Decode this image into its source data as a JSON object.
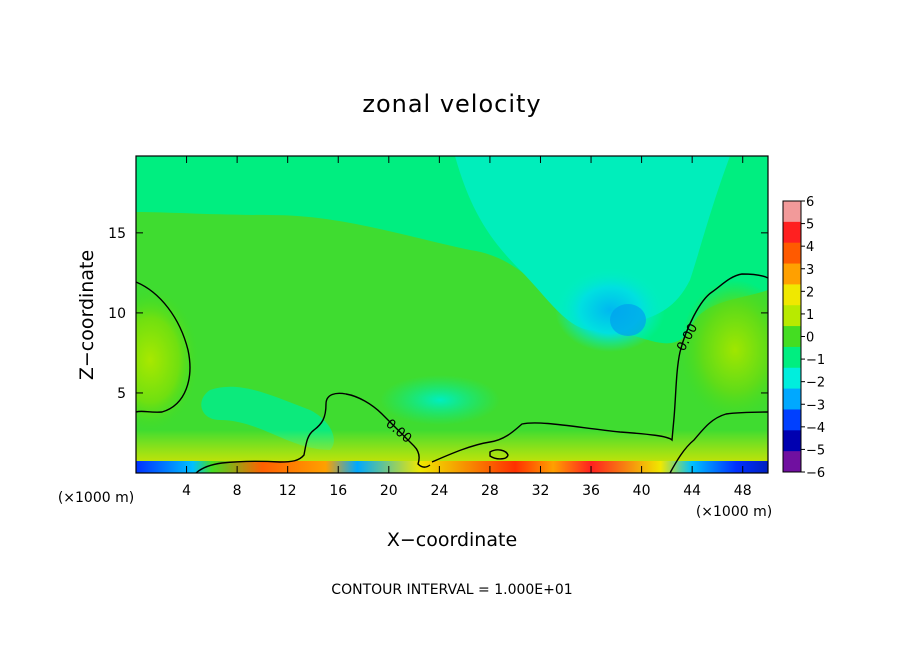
{
  "chart_data": {
    "type": "heatmap",
    "title": "zonal velocity",
    "xlabel": "X−coordinate",
    "ylabel": "Z−coordinate",
    "x_unit_left": "(×1000 m)",
    "x_unit_right": "(×1000 m)",
    "xlim": [
      0,
      50
    ],
    "ylim": [
      0,
      19.8
    ],
    "x_ticks": [
      4,
      8,
      12,
      16,
      20,
      24,
      28,
      32,
      36,
      40,
      44,
      48
    ],
    "y_ticks": [
      5,
      10,
      15
    ],
    "contour_label": "0.00",
    "footer": "CONTOUR INTERVAL = 1.000E+01",
    "colorbar": {
      "ticks": [
        6,
        5,
        4,
        3,
        2,
        1,
        0,
        -1,
        -2,
        -3,
        -4,
        -5,
        -6
      ],
      "tick_labels": [
        "6",
        "5",
        "4",
        "3",
        "2",
        "1",
        "0",
        "−1",
        "−2",
        "−3",
        "−4",
        "−5",
        "−6"
      ],
      "colors": [
        "#f29a9a",
        "#ff2020",
        "#ff5a00",
        "#ffa000",
        "#f0e800",
        "#b8ea00",
        "#44dd22",
        "#00ee80",
        "#00eedd",
        "#00a8ff",
        "#0040ff",
        "#0000b0",
        "#7010a0"
      ]
    }
  }
}
